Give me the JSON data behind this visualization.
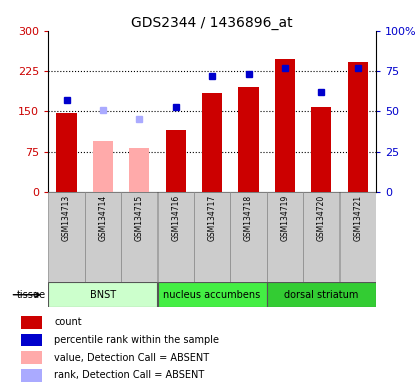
{
  "title": "GDS2344 / 1436896_at",
  "samples": [
    "GSM134713",
    "GSM134714",
    "GSM134715",
    "GSM134716",
    "GSM134717",
    "GSM134718",
    "GSM134719",
    "GSM134720",
    "GSM134721"
  ],
  "bar_values": [
    147,
    95,
    82,
    115,
    185,
    195,
    248,
    158,
    242
  ],
  "bar_colors": [
    "#cc0000",
    "#ffaaaa",
    "#ffaaaa",
    "#cc0000",
    "#cc0000",
    "#cc0000",
    "#cc0000",
    "#cc0000",
    "#cc0000"
  ],
  "rank_values": [
    57,
    null,
    null,
    53,
    72,
    73,
    77,
    62,
    77
  ],
  "rank_absent": [
    null,
    51,
    45,
    null,
    null,
    null,
    null,
    null,
    null
  ],
  "ylim_left": [
    0,
    300
  ],
  "ylim_right": [
    0,
    100
  ],
  "yticks_left": [
    0,
    75,
    150,
    225,
    300
  ],
  "yticks_right": [
    0,
    25,
    50,
    75,
    100
  ],
  "ytick_labels_left": [
    "0",
    "75",
    "150",
    "225",
    "300"
  ],
  "ytick_labels_right": [
    "0",
    "25",
    "50",
    "75",
    "100%"
  ],
  "tissue_groups": [
    {
      "label": "BNST",
      "start": 0,
      "end": 3,
      "color": "#ccffcc"
    },
    {
      "label": "nucleus accumbens",
      "start": 3,
      "end": 6,
      "color": "#44ee44"
    },
    {
      "label": "dorsal striatum",
      "start": 6,
      "end": 9,
      "color": "#33cc33"
    }
  ],
  "tissue_label": "tissue",
  "legend_items": [
    {
      "color": "#cc0000",
      "label": "count",
      "marker": "s"
    },
    {
      "color": "#0000cc",
      "label": "percentile rank within the sample",
      "marker": "s"
    },
    {
      "color": "#ffaaaa",
      "label": "value, Detection Call = ABSENT",
      "marker": "s"
    },
    {
      "color": "#aaaaff",
      "label": "rank, Detection Call = ABSENT",
      "marker": "s"
    }
  ],
  "background_color": "#ffffff",
  "bar_width": 0.55,
  "tick_color_left": "#cc0000",
  "tick_color_right": "#0000cc",
  "sample_box_color": "#cccccc",
  "sample_box_edge": "#888888"
}
